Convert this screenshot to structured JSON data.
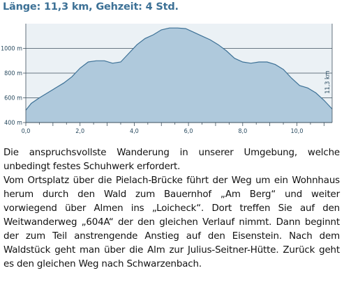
{
  "title": "Länge: 11,3 km, Gehzeit: 4 Std.",
  "chart_data": {
    "type": "area",
    "title": "",
    "xlabel": "",
    "ylabel": "",
    "xlim": [
      0,
      11.3
    ],
    "ylim": [
      400,
      1200
    ],
    "x_ticks": [
      0,
      2,
      4,
      6,
      8,
      10
    ],
    "x_tick_labels": [
      "0,0",
      "2,0",
      "4,0",
      "6,0",
      "8,0",
      "10,0"
    ],
    "y_ticks": [
      400,
      600,
      800,
      1000
    ],
    "y_tick_labels": [
      "400 m",
      "600 m",
      "800 m",
      "1000 m"
    ],
    "end_label": "11,3 km",
    "grid": true,
    "fill_color": "#afc9dc",
    "line_color": "#3d7196",
    "series": [
      {
        "x": [
          0,
          0.2,
          0.5,
          0.8,
          1.1,
          1.4,
          1.7,
          2.0,
          2.3,
          2.6,
          2.9,
          3.2,
          3.5,
          3.8,
          4.1,
          4.4,
          4.7,
          5.0,
          5.3,
          5.6,
          5.9,
          6.2,
          6.5,
          6.8,
          7.1,
          7.4,
          7.7,
          8.0,
          8.3,
          8.6,
          8.9,
          9.2,
          9.5,
          9.8,
          10.1,
          10.4,
          10.7,
          11.0,
          11.3
        ],
        "y": [
          500,
          555,
          600,
          640,
          680,
          720,
          770,
          840,
          890,
          900,
          900,
          880,
          890,
          960,
          1030,
          1080,
          1110,
          1150,
          1165,
          1165,
          1160,
          1130,
          1100,
          1070,
          1030,
          980,
          920,
          890,
          880,
          890,
          890,
          870,
          830,
          760,
          700,
          680,
          640,
          580,
          510
        ]
      }
    ]
  },
  "paragraphs": [
    "Die anspruchsvollste Wanderung in unserer Umgebung, welche unbedingt festes Schuhwerk erfordert.",
    "Vom Ortsplatz über die Pielach-Brücke führt der Weg um ein Wohnhaus herum durch den Wald zum Bauernhof „Am Berg“ und weiter vorwiegend über Almen ins „Loicheck“. Dort treffen Sie auf den Weitwanderweg „604A“ der den gleichen Verlauf nimmt. Dann beginnt der zum Teil anstrengende Anstieg auf den Eisenstein. Nach dem Waldstück geht man über die Alm zur Julius-Seitner-Hütte. Zurück geht es den gleichen Weg nach Schwarzenbach."
  ]
}
